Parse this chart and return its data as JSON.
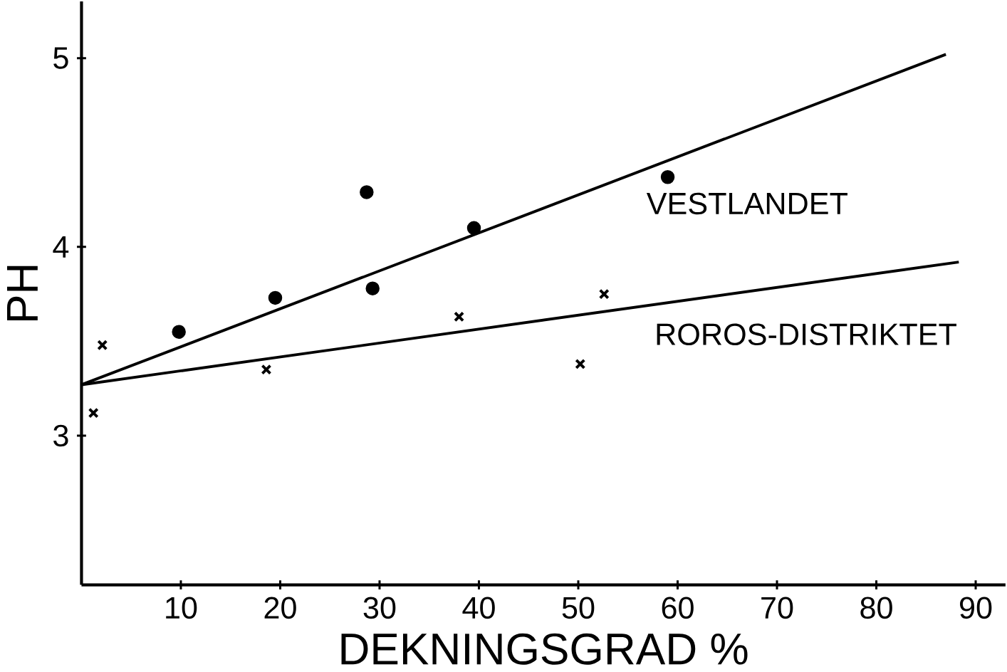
{
  "chart_data": {
    "type": "scatter",
    "xlabel": "DEKNINGSGRAD %",
    "ylabel": "PH",
    "xlim": [
      0,
      93
    ],
    "ylim": [
      2.21,
      5.3
    ],
    "xticks": [
      10,
      20,
      30,
      40,
      50,
      60,
      70,
      80,
      90
    ],
    "yticks": [
      3,
      4,
      5
    ],
    "grid": false,
    "legend": false,
    "series": [
      {
        "marker": "circle",
        "color": "#000000",
        "x": [
          9.8,
          19.5,
          28.7,
          29.3,
          39.5,
          59
        ],
        "values": [
          3.55,
          3.73,
          4.29,
          3.78,
          4.1,
          4.37
        ]
      },
      {
        "marker": "cross",
        "color": "#000000",
        "x": [
          1.2,
          2.1,
          18.6,
          38,
          50.2,
          52.6
        ],
        "values": [
          3.12,
          3.48,
          3.35,
          3.63,
          3.38,
          3.75
        ]
      },
      {
        "type": "line",
        "name": "VESTLANDET",
        "color": "#000000",
        "x": [
          0,
          87
        ],
        "values": [
          3.27,
          5.02
        ]
      },
      {
        "type": "line",
        "name": "ROROS-DISTRIKTET",
        "color": "#000000",
        "x": [
          0,
          88.3
        ],
        "values": [
          3.27,
          3.92
        ]
      }
    ]
  }
}
